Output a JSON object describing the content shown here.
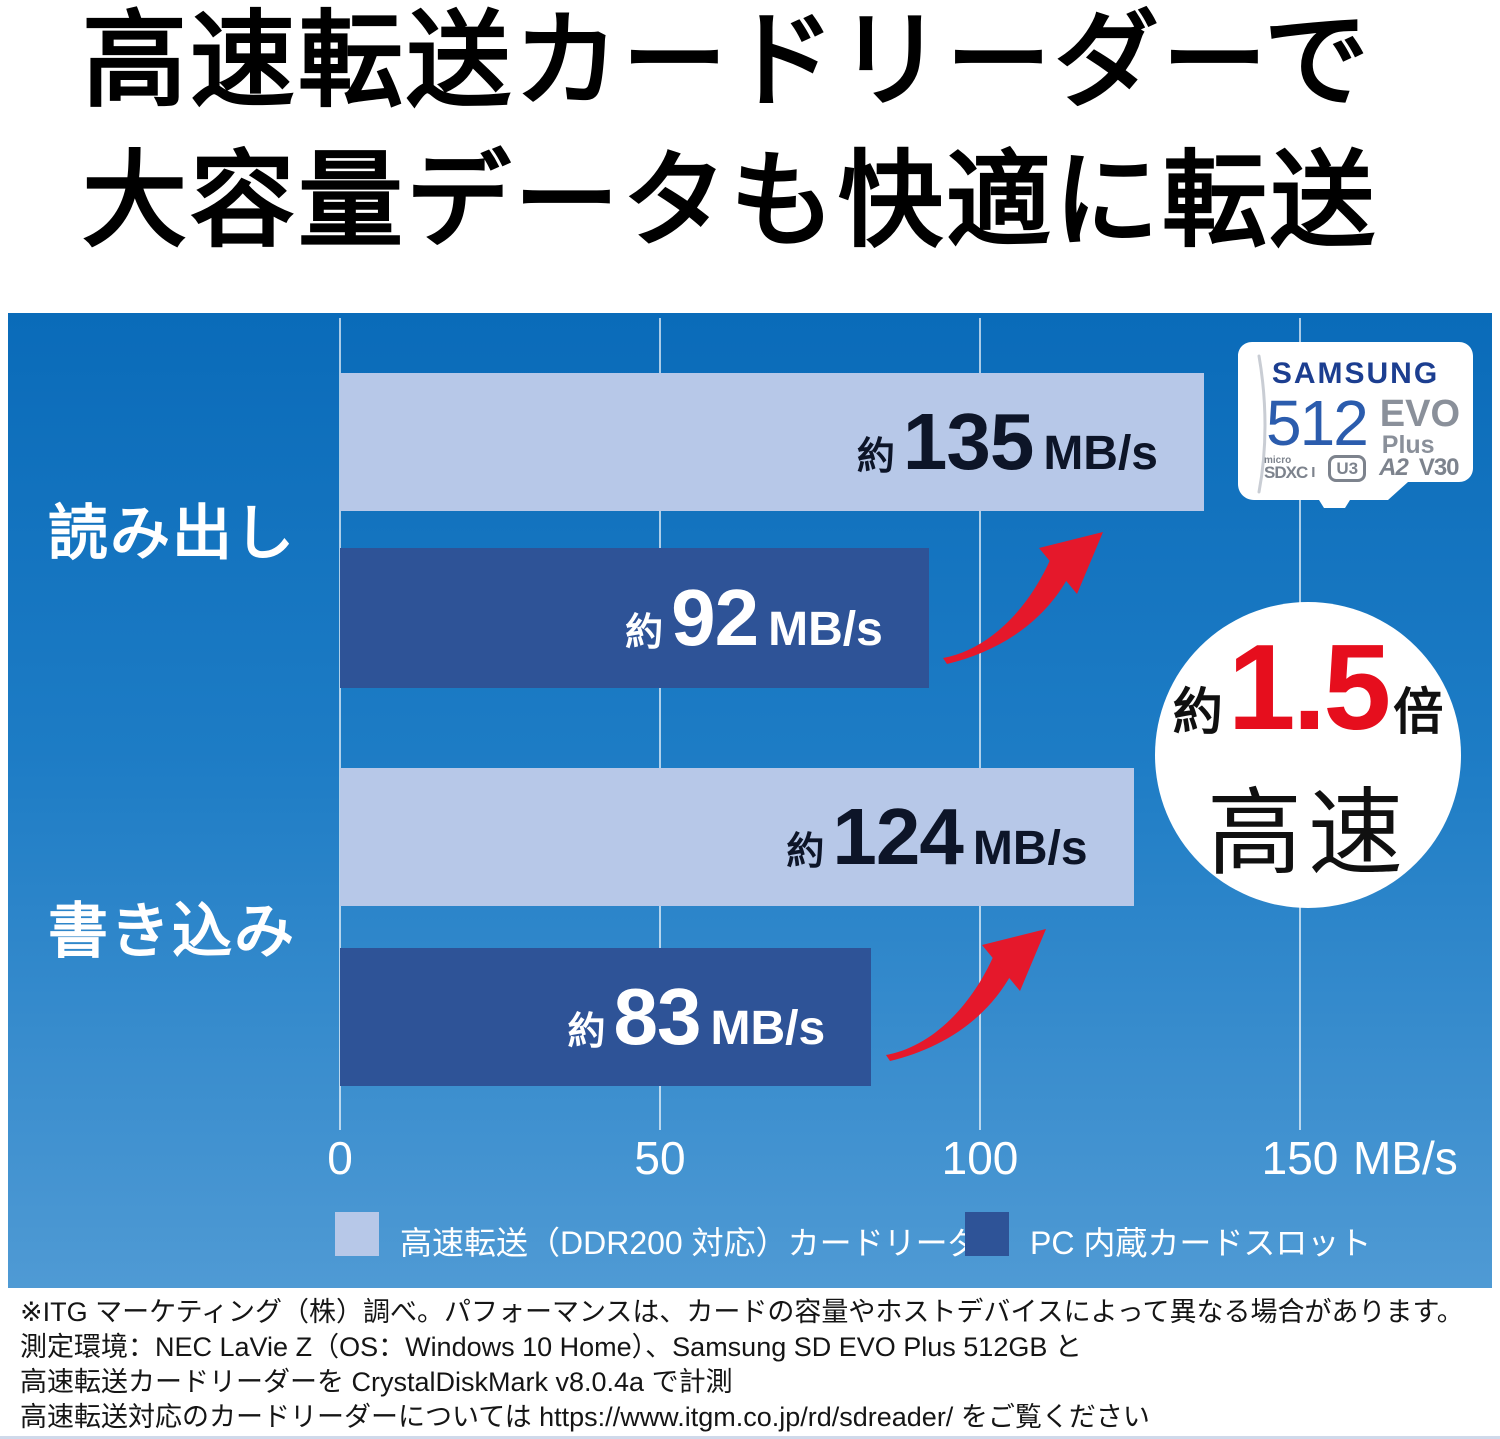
{
  "headline": {
    "line1": "高速転送カードリーダーで",
    "line2": "大容量データも快適に転送"
  },
  "chart_data": {
    "type": "bar",
    "orientation": "horizontal",
    "title": "",
    "categories": [
      "読み出し",
      "書き込み"
    ],
    "series": [
      {
        "name": "高速転送（DDR200 対応）カードリーダー",
        "color": "#b7c8e8",
        "values": [
          135,
          124
        ]
      },
      {
        "name": "PC 内蔵カードスロット",
        "color": "#2e5397",
        "values": [
          92,
          83
        ]
      }
    ],
    "value_prefix": "約",
    "value_unit": "MB/s",
    "x_ticks": [
      "0",
      "50",
      "100",
      "150"
    ],
    "x_unit": "MB/s",
    "xlim": [
      0,
      150
    ],
    "grid": true,
    "legend_position": "bottom",
    "background_gradient": [
      "#0a6bb9",
      "#4f9ad4"
    ],
    "annotation_arrow_color": "#e5182b"
  },
  "badge": {
    "prefix": "約",
    "value": "1.5",
    "suffix": "倍",
    "label": "高速",
    "value_color": "#e60e1d"
  },
  "card": {
    "brand": "SAMSUNG",
    "capacity": "512",
    "series": "EVO",
    "series_sub": "Plus",
    "spec_format_top": "micro",
    "spec_format_bottom": "SDXC",
    "spec_bus": "I",
    "spec_speed_class": "U3",
    "spec_app_class": "A2",
    "spec_video_class": "V30"
  },
  "footnotes": [
    "※ITG マーケティング（株）調べ。パフォーマンスは、カードの容量やホストデバイスによって異なる場合があります。",
    "測定環境：NEC LaVie Z（OS：Windows 10 Home）、Samsung SD EVO Plus 512GB と",
    "高速転送カードリーダーを CrystalDiskMark v8.0.4a で計測",
    "高速転送対応のカードリーダーについては https://www.itgm.co.jp/rd/sdreader/ をご覧ください"
  ]
}
